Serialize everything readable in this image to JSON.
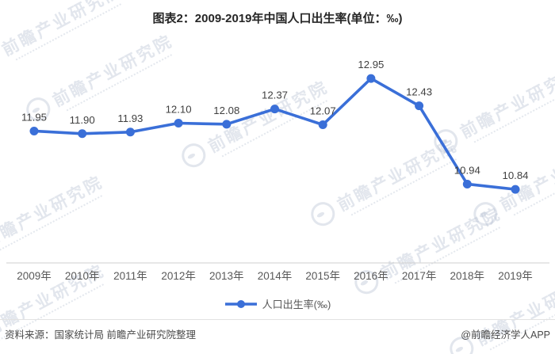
{
  "title": "图表2：2009-2019年中国人口出生率(单位：‰)",
  "chart_data": {
    "type": "line",
    "title": "图表2：2009-2019年中国人口出生率(单位：‰)",
    "categories": [
      "2009年",
      "2010年",
      "2011年",
      "2012年",
      "2013年",
      "2014年",
      "2015年",
      "2016年",
      "2017年",
      "2018年",
      "2019年"
    ],
    "series": [
      {
        "name": "人口出生率(‰)",
        "values": [
          11.95,
          11.9,
          11.93,
          12.1,
          12.08,
          12.37,
          12.07,
          12.95,
          12.43,
          10.94,
          10.84
        ],
        "color": "#3A6FD8"
      }
    ],
    "xlabel": "",
    "ylabel": "",
    "ylim": [
      9.5,
      13.6
    ],
    "grid": false,
    "legend_position": "bottom",
    "data_labels": true
  },
  "legend": {
    "label": "人口出生率(‰)"
  },
  "footer": {
    "source": "资料来源：国家统计局 前瞻产业研究院整理",
    "credit": "@前瞻经济学人APP"
  },
  "watermark": {
    "text": "前瞻产业研究院"
  },
  "colors": {
    "line": "#3A6FD8",
    "label_text": "#3f3f3f",
    "axis_text": "#595959",
    "axis_line": "#cfcfcf"
  }
}
